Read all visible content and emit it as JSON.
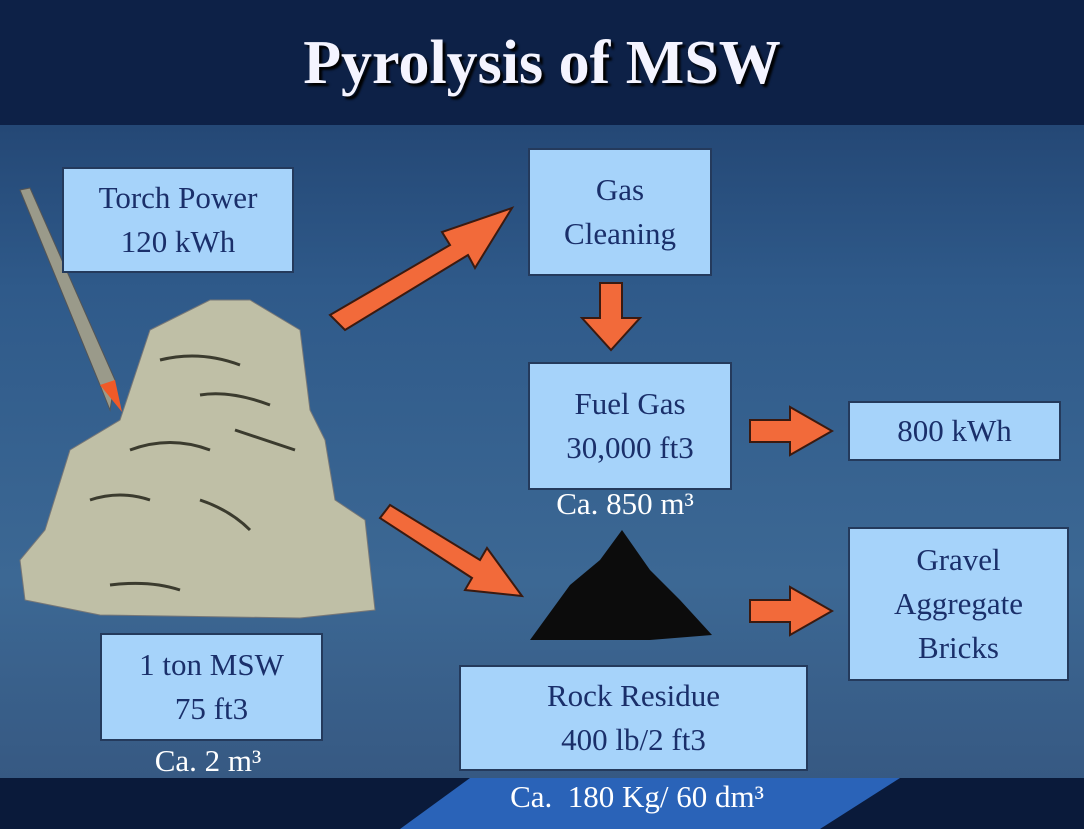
{
  "title": "Pyrolysis of MSW",
  "boxes": [
    {
      "lines": [
        "Torch Power",
        "120 kWh"
      ]
    },
    {
      "lines": [
        "Gas",
        "Cleaning"
      ]
    },
    {
      "lines": [
        "Fuel Gas",
        "30,000 ft3"
      ]
    },
    {
      "lines": [
        "800 kWh"
      ]
    },
    {
      "lines": [
        "Gravel",
        "Aggregate",
        "Bricks"
      ]
    },
    {
      "lines": [
        "1 ton MSW",
        "75 ft3"
      ]
    },
    {
      "lines": [
        "Rock Residue",
        "400 lb/2 ft3"
      ]
    }
  ],
  "captions": [
    "Ca. 850 m³",
    "Ca. 2 m³",
    "Ca.  180 Kg/ 60 dm³"
  ]
}
